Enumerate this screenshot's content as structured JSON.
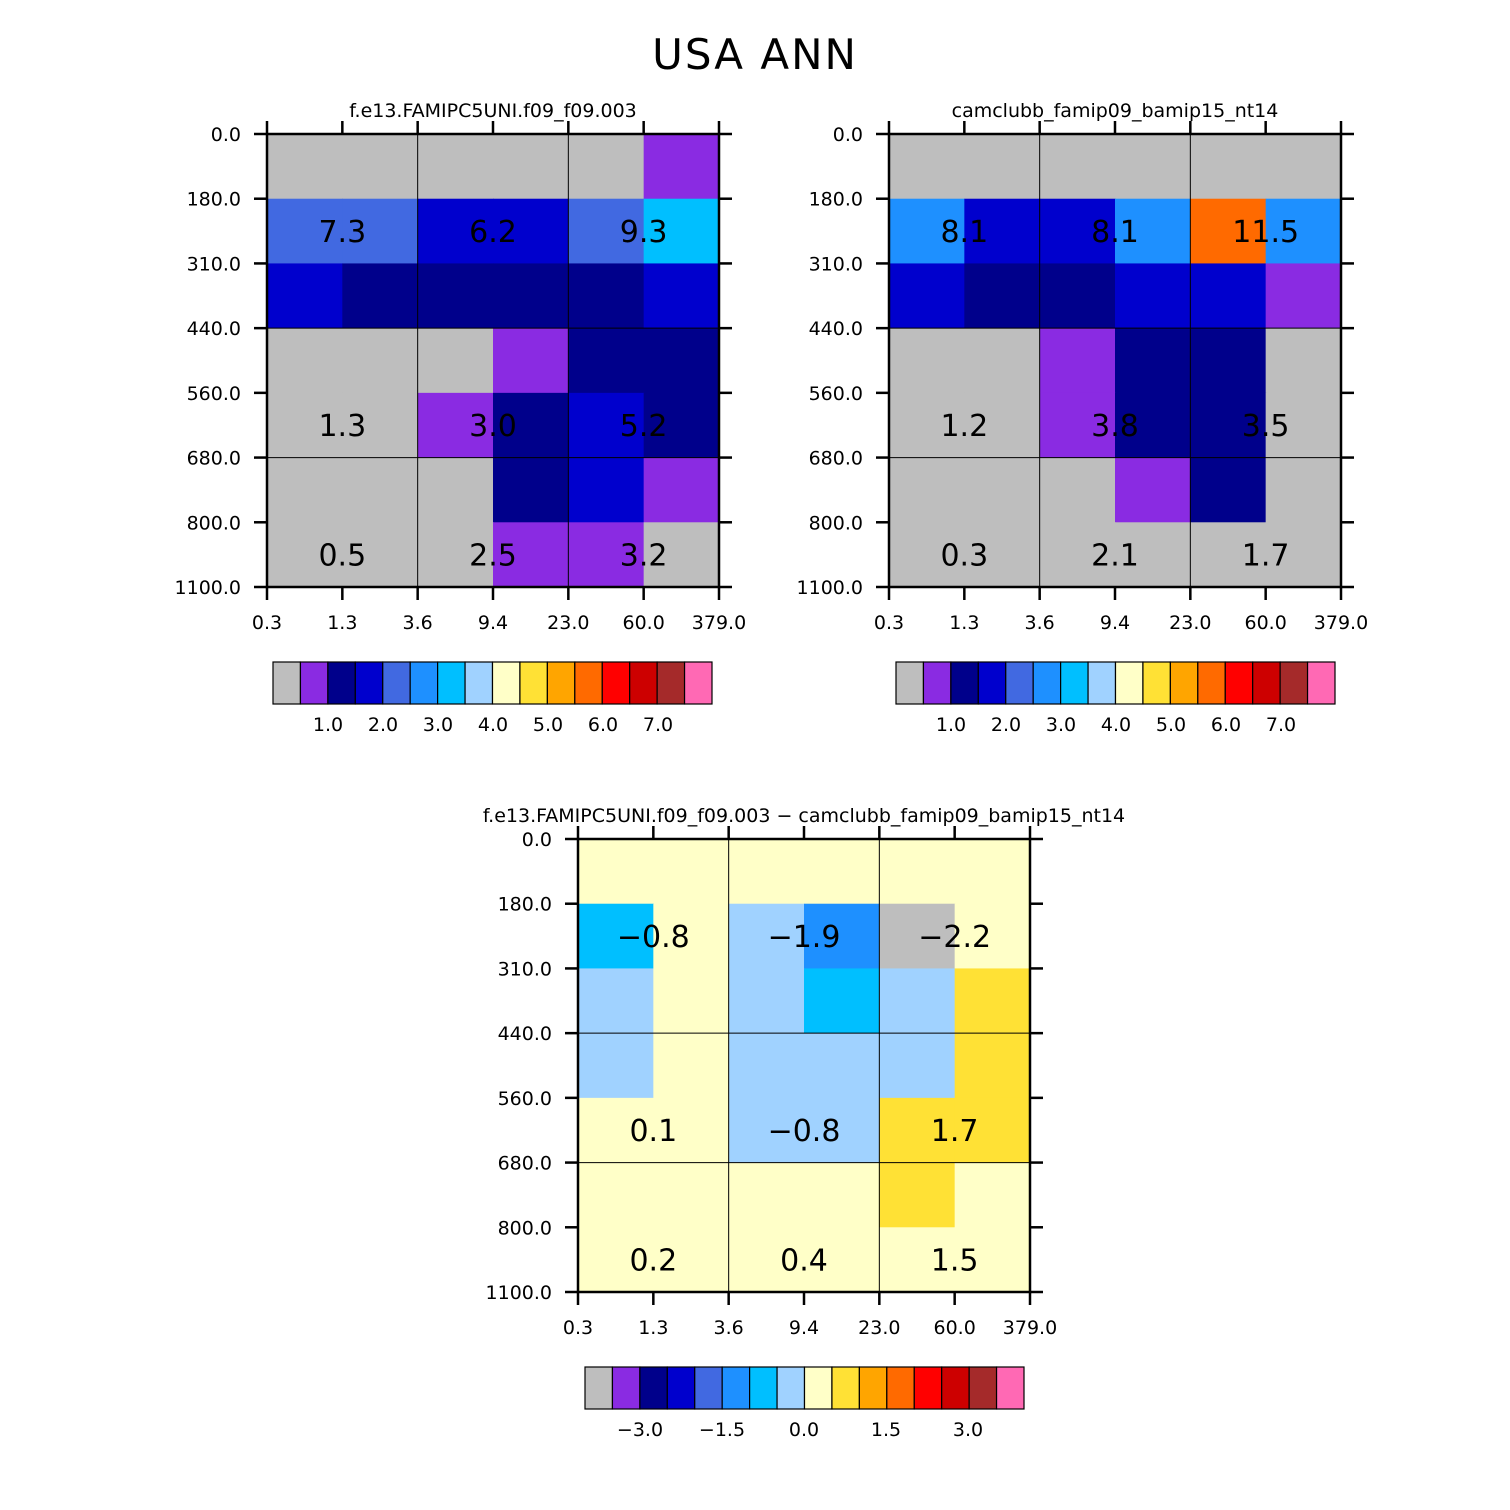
{
  "title": "USA ANN",
  "palette": [
    "#bebebe",
    "#8a2be2",
    "#00008b",
    "#0000cd",
    "#4169e1",
    "#1e90ff",
    "#00bfff",
    "#a0d2ff",
    "#ffffc8",
    "#ffe135",
    "#ffa500",
    "#ff6a00",
    "#ff0000",
    "#cd0000",
    "#a52a2a",
    "#ff69b4"
  ],
  "chart_data": [
    {
      "type": "heatmap",
      "title": "f.e13.FAMIPC5UNI.f09_f09.003",
      "x_tick_labels": [
        "0.3",
        "1.3",
        "3.6",
        "9.4",
        "23.0",
        "60.0",
        "379.0"
      ],
      "y_tick_labels": [
        "0.0",
        "180.0",
        "310.0",
        "440.0",
        "560.0",
        "680.0",
        "800.0",
        "1100.0"
      ],
      "cell_color_index": [
        [
          0,
          0,
          0,
          0,
          0,
          1
        ],
        [
          4,
          4,
          3,
          3,
          4,
          6
        ],
        [
          3,
          2,
          2,
          2,
          2,
          3
        ],
        [
          0,
          0,
          0,
          1,
          2,
          2
        ],
        [
          0,
          0,
          1,
          2,
          3,
          2
        ],
        [
          0,
          0,
          0,
          2,
          3,
          1
        ],
        [
          0,
          0,
          0,
          1,
          1,
          0
        ]
      ],
      "labels": [
        {
          "col": 0,
          "row": 1,
          "text": "7.3"
        },
        {
          "col": 1,
          "row": 1,
          "text": "6.2"
        },
        {
          "col": 2,
          "row": 1,
          "text": "9.3"
        },
        {
          "col": 0,
          "row": 4,
          "text": "1.3"
        },
        {
          "col": 1,
          "row": 4,
          "text": "3.0"
        },
        {
          "col": 2,
          "row": 4,
          "text": "5.2"
        },
        {
          "col": 0,
          "row": 6,
          "text": "0.5"
        },
        {
          "col": 1,
          "row": 6,
          "text": "2.5"
        },
        {
          "col": 2,
          "row": 6,
          "text": "3.2"
        }
      ],
      "colorbar_labels": [
        "1.0",
        "2.0",
        "3.0",
        "4.0",
        "5.0",
        "6.0",
        "7.0"
      ]
    },
    {
      "type": "heatmap",
      "title": "camclubb_famip09_bamip15_nt14",
      "x_tick_labels": [
        "0.3",
        "1.3",
        "3.6",
        "9.4",
        "23.0",
        "60.0",
        "379.0"
      ],
      "y_tick_labels": [
        "0.0",
        "180.0",
        "310.0",
        "440.0",
        "560.0",
        "680.0",
        "800.0",
        "1100.0"
      ],
      "cell_color_index": [
        [
          0,
          0,
          0,
          0,
          0,
          0
        ],
        [
          5,
          3,
          3,
          5,
          11,
          5
        ],
        [
          3,
          2,
          2,
          3,
          3,
          1
        ],
        [
          0,
          0,
          1,
          2,
          2,
          0
        ],
        [
          0,
          0,
          1,
          2,
          2,
          0
        ],
        [
          0,
          0,
          0,
          1,
          2,
          0
        ],
        [
          0,
          0,
          0,
          0,
          0,
          0
        ]
      ],
      "labels": [
        {
          "col": 0,
          "row": 1,
          "text": "8.1"
        },
        {
          "col": 1,
          "row": 1,
          "text": "8.1"
        },
        {
          "col": 2,
          "row": 1,
          "text": "11.5"
        },
        {
          "col": 0,
          "row": 4,
          "text": "1.2"
        },
        {
          "col": 1,
          "row": 4,
          "text": "3.8"
        },
        {
          "col": 2,
          "row": 4,
          "text": "3.5"
        },
        {
          "col": 0,
          "row": 6,
          "text": "0.3"
        },
        {
          "col": 1,
          "row": 6,
          "text": "2.1"
        },
        {
          "col": 2,
          "row": 6,
          "text": "1.7"
        }
      ],
      "colorbar_labels": [
        "1.0",
        "2.0",
        "3.0",
        "4.0",
        "5.0",
        "6.0",
        "7.0"
      ]
    },
    {
      "type": "heatmap",
      "title": "f.e13.FAMIPC5UNI.f09_f09.003 − camclubb_famip09_bamip15_nt14",
      "x_tick_labels": [
        "0.3",
        "1.3",
        "3.6",
        "9.4",
        "23.0",
        "60.0",
        "379.0"
      ],
      "y_tick_labels": [
        "0.0",
        "180.0",
        "310.0",
        "440.0",
        "560.0",
        "680.0",
        "800.0",
        "1100.0"
      ],
      "cell_color_index": [
        [
          8,
          8,
          8,
          8,
          8,
          8
        ],
        [
          6,
          8,
          7,
          5,
          0,
          8
        ],
        [
          7,
          8,
          7,
          6,
          7,
          9
        ],
        [
          7,
          8,
          7,
          7,
          7,
          9
        ],
        [
          8,
          8,
          7,
          7,
          9,
          9
        ],
        [
          8,
          8,
          8,
          8,
          9,
          8
        ],
        [
          8,
          8,
          8,
          8,
          8,
          8
        ]
      ],
      "labels": [
        {
          "col": 0,
          "row": 1,
          "text": "−0.8"
        },
        {
          "col": 1,
          "row": 1,
          "text": "−1.9"
        },
        {
          "col": 2,
          "row": 1,
          "text": "−2.2"
        },
        {
          "col": 0,
          "row": 4,
          "text": "0.1"
        },
        {
          "col": 1,
          "row": 4,
          "text": "−0.8"
        },
        {
          "col": 2,
          "row": 4,
          "text": "1.7"
        },
        {
          "col": 0,
          "row": 6,
          "text": "0.2"
        },
        {
          "col": 1,
          "row": 6,
          "text": "0.4"
        },
        {
          "col": 2,
          "row": 6,
          "text": "1.5"
        }
      ],
      "colorbar_labels": [
        "−3.0",
        "−1.5",
        "0.0",
        "1.5",
        "3.0"
      ]
    }
  ]
}
